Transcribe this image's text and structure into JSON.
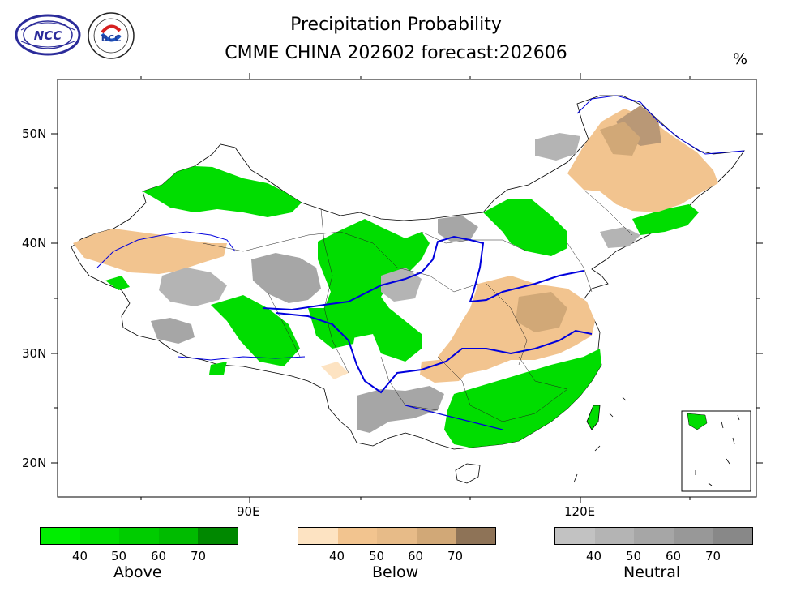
{
  "header": {
    "title_line1": "Precipitation Probability",
    "title_line2": "CMME CHINA 202602 forecast:202606",
    "unit": "%"
  },
  "logos": [
    {
      "name": "NCC",
      "text": "NCC"
    },
    {
      "name": "BCC",
      "text": "BCC"
    }
  ],
  "axes": {
    "y_ticks": [
      "50N",
      "40N",
      "30N",
      "20N"
    ],
    "x_ticks": [
      "90E",
      "120E"
    ]
  },
  "legend": [
    {
      "name": "Above",
      "labels": [
        "40",
        "50",
        "60",
        "70"
      ],
      "colors": [
        "#00ee00",
        "#00dd00",
        "#00cc00",
        "#00bb00",
        "#008800"
      ]
    },
    {
      "name": "Below",
      "labels": [
        "40",
        "50",
        "60",
        "70"
      ],
      "colors": [
        "#fde3c2",
        "#f2c48f",
        "#e7bb88",
        "#d1a877",
        "#8e7357"
      ]
    },
    {
      "name": "Neutral",
      "labels": [
        "40",
        "50",
        "60",
        "70"
      ],
      "colors": [
        "#c2c2c2",
        "#b4b4b4",
        "#a6a6a6",
        "#989898",
        "#888888"
      ]
    }
  ]
}
